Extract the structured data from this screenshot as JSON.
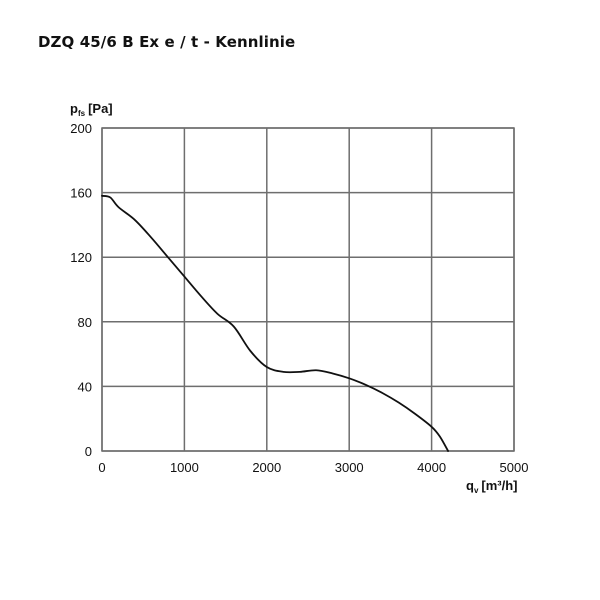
{
  "title": "DZQ 45/6 B Ex e / t - Kennlinie",
  "axes": {
    "y_label_main": "p",
    "y_label_sub": "fs",
    "y_label_unit": "[Pa]",
    "x_label_main": "q",
    "x_label_sub": "v",
    "x_label_unit": "[m³/h]",
    "x_ticks": [
      "0",
      "1000",
      "2000",
      "3000",
      "4000",
      "5000"
    ],
    "y_ticks": [
      "0",
      "40",
      "80",
      "120",
      "160",
      "200"
    ]
  },
  "colors": {
    "grid": "#6e6e6e",
    "curve": "#111111",
    "frame": "#6e6e6e"
  },
  "chart_data": {
    "type": "line",
    "title": "DZQ 45/6 B Ex e / t - Kennlinie",
    "xlabel": "q_v [m³/h]",
    "ylabel": "p_fs [Pa]",
    "xlim": [
      0,
      5000
    ],
    "ylim": [
      0,
      200
    ],
    "grid": true,
    "legend": null,
    "x_ticks": [
      0,
      1000,
      2000,
      3000,
      4000,
      5000
    ],
    "y_ticks": [
      0,
      40,
      80,
      120,
      160,
      200
    ],
    "series": [
      {
        "name": "Kennlinie",
        "x": [
          0,
          100,
          200,
          400,
          600,
          800,
          1000,
          1200,
          1400,
          1600,
          1800,
          2000,
          2200,
          2400,
          2600,
          2800,
          3000,
          3200,
          3400,
          3600,
          3800,
          4000,
          4100,
          4200
        ],
        "y": [
          158,
          157,
          151,
          143,
          132,
          120,
          108,
          96,
          85,
          77,
          62,
          52,
          49,
          49,
          50,
          48,
          45,
          41,
          36,
          30,
          23,
          15,
          9,
          0
        ]
      }
    ]
  }
}
